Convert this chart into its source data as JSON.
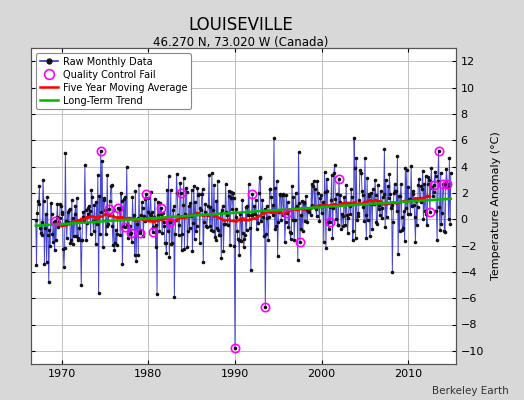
{
  "title": "LOUISEVILLE",
  "subtitle": "46.270 N, 73.020 W (Canada)",
  "ylabel": "Temperature Anomaly (°C)",
  "attribution": "Berkeley Earth",
  "ylim": [
    -11,
    13
  ],
  "yticks": [
    -10,
    -8,
    -6,
    -4,
    -2,
    0,
    2,
    4,
    6,
    8,
    10,
    12
  ],
  "xlim": [
    1966.5,
    2015.5
  ],
  "xticks": [
    1970,
    1980,
    1990,
    2000,
    2010
  ],
  "bg_color": "#d8d8d8",
  "plot_bg_color": "#ffffff",
  "grid_color": "#c0c0c0",
  "line_color_raw": "#3333cc",
  "dot_color_raw": "#111111",
  "line_color_avg": "#ff0000",
  "line_color_trend": "#00bb00",
  "qc_fail_color": "#ff00ff",
  "legend_items": [
    "Raw Monthly Data",
    "Quality Control Fail",
    "Five Year Moving Average",
    "Long-Term Trend"
  ]
}
